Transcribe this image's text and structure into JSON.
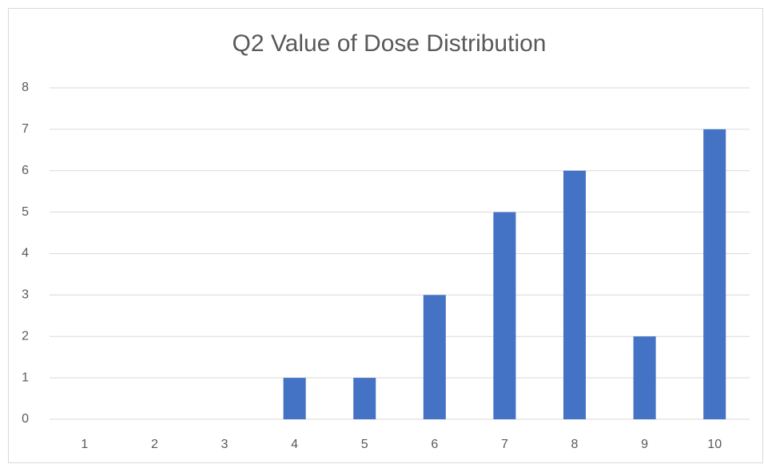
{
  "chart_data": {
    "type": "bar",
    "title": "Q2 Value of Dose Distribution",
    "categories": [
      "1",
      "2",
      "3",
      "4",
      "5",
      "6",
      "7",
      "8",
      "9",
      "10"
    ],
    "values": [
      0,
      0,
      0,
      1,
      1,
      3,
      5,
      6,
      2,
      7
    ],
    "color": "#4472c4",
    "ylim": [
      0,
      8
    ],
    "yticks": [
      0,
      1,
      2,
      3,
      4,
      5,
      6,
      7,
      8
    ],
    "grid": true
  }
}
